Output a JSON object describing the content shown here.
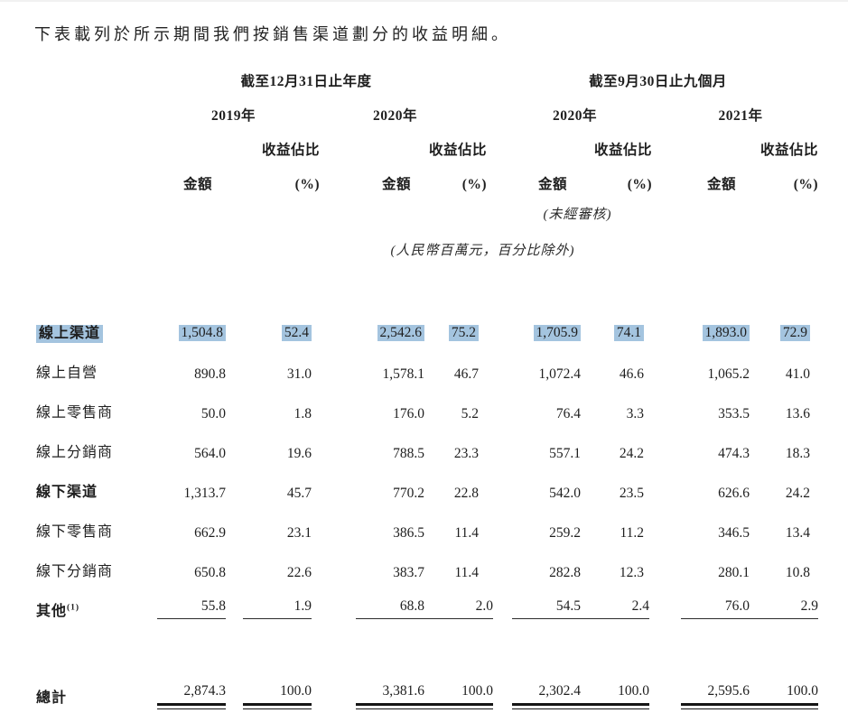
{
  "page": {
    "intro": "下表載列於所示期間我們按銷售渠道劃分的收益明細。"
  },
  "colors": {
    "highlight": "#a4c4df",
    "text": "#1e1e1e"
  },
  "table": {
    "period_groups": [
      "截至12月31日止年度",
      "截至9月30日止九個月"
    ],
    "years": [
      "2019年",
      "2020年",
      "2020年",
      "2021年"
    ],
    "share_label": "收益佔比",
    "amount_label": "金額",
    "percent_label": "(%)",
    "notes": {
      "unaudited": "(未經審核)",
      "units": "(人民幣百萬元，百分比除外)"
    },
    "rows": [
      {
        "label": "線上渠道",
        "bold": true,
        "highlight": true,
        "values": [
          "1,504.8",
          "52.4",
          "2,542.6",
          "75.2",
          "1,705.9",
          "74.1",
          "1,893.0",
          "72.9"
        ]
      },
      {
        "label": "線上自營",
        "values": [
          "890.8",
          "31.0",
          "1,578.1",
          "46.7",
          "1,072.4",
          "46.6",
          "1,065.2",
          "41.0"
        ]
      },
      {
        "label": "線上零售商",
        "values": [
          "50.0",
          "1.8",
          "176.0",
          "5.2",
          "76.4",
          "3.3",
          "353.5",
          "13.6"
        ]
      },
      {
        "label": "線上分銷商",
        "values": [
          "564.0",
          "19.6",
          "788.5",
          "23.3",
          "557.1",
          "24.2",
          "474.3",
          "18.3"
        ]
      },
      {
        "label": "線下渠道",
        "bold": true,
        "values": [
          "1,313.7",
          "45.7",
          "770.2",
          "22.8",
          "542.0",
          "23.5",
          "626.6",
          "24.2"
        ]
      },
      {
        "label": "線下零售商",
        "values": [
          "662.9",
          "23.1",
          "386.5",
          "11.4",
          "259.2",
          "11.2",
          "346.5",
          "13.4"
        ]
      },
      {
        "label": "線下分銷商",
        "values": [
          "650.8",
          "22.6",
          "383.7",
          "11.4",
          "282.8",
          "12.3",
          "280.1",
          "10.8"
        ]
      },
      {
        "label": "其他",
        "sup": "(1)",
        "bold": true,
        "rule": "single",
        "values": [
          "55.8",
          "1.9",
          "68.8",
          "2.0",
          "54.5",
          "2.4",
          "76.0",
          "2.9"
        ]
      }
    ],
    "total_row": {
      "label": "總計",
      "bold": true,
      "rule": "double",
      "values": [
        "2,874.3",
        "100.0",
        "3,381.6",
        "100.0",
        "2,302.4",
        "100.0",
        "2,595.6",
        "100.0"
      ]
    }
  }
}
